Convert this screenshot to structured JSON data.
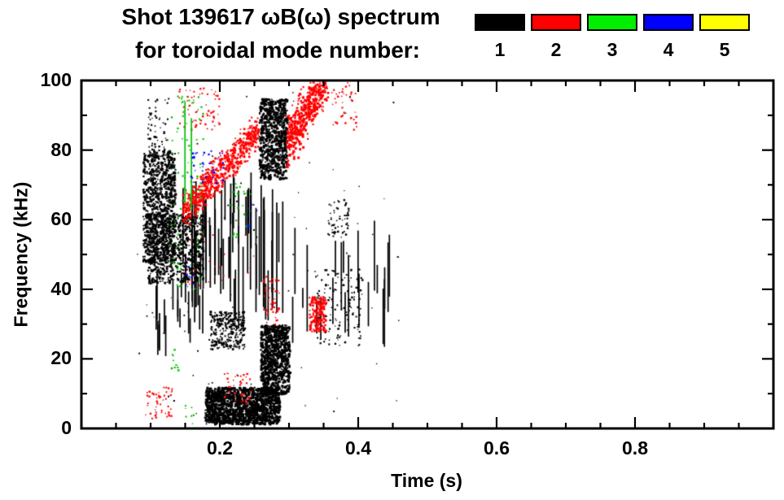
{
  "header": {
    "title_line1": "Shot 139617 ωB(ω) spectrum",
    "title_line2": "for toroidal mode number:"
  },
  "legend": {
    "entries": [
      {
        "label": "1",
        "color": "#000000"
      },
      {
        "label": "2",
        "color": "#ff0000"
      },
      {
        "label": "3",
        "color": "#00ee00"
      },
      {
        "label": "4",
        "color": "#0000ff"
      },
      {
        "label": "5",
        "color": "#ffff00"
      }
    ]
  },
  "chart_data": {
    "type": "scatter",
    "title": "Shot 139617 ωB(ω) spectrum",
    "subtitle": "for toroidal mode number: 1 2 3 4 5",
    "xlabel": "Time (s)",
    "ylabel": "Frequency (kHz)",
    "xlim": [
      0,
      1
    ],
    "ylim": [
      0,
      100
    ],
    "x_major_ticks": [
      0.2,
      0.4,
      0.6,
      0.8
    ],
    "x_tick_labels": [
      "0.2",
      "0.4",
      "0.6",
      "0.8"
    ],
    "x_minor_step": 0.05,
    "y_major_ticks": [
      0,
      20,
      40,
      60,
      80,
      100
    ],
    "y_tick_labels": [
      "0",
      "20",
      "40",
      "60",
      "80",
      "100"
    ],
    "y_minor_step": 10,
    "grid": false,
    "legend_position": "top-right",
    "series": [
      {
        "name": "mode 1",
        "color": "#000000",
        "clusters": [
          {
            "kind": "blob",
            "t": [
              0.088,
              0.135
            ],
            "f": [
              48,
              80
            ],
            "n": 900,
            "s": 2.2
          },
          {
            "kind": "blob",
            "t": [
              0.095,
              0.175
            ],
            "f": [
              42,
              62
            ],
            "n": 700,
            "s": 2.2
          },
          {
            "kind": "blob",
            "t": [
              0.095,
              0.125
            ],
            "f": [
              80,
              95
            ],
            "n": 60,
            "s": 1.8
          },
          {
            "kind": "vlines",
            "t": [
              0.105,
              0.175
            ],
            "f": [
              20,
              45
            ],
            "n": 18,
            "len": [
              4,
              14
            ]
          },
          {
            "kind": "vlines",
            "t": [
              0.145,
              0.265
            ],
            "f": [
              28,
              76
            ],
            "n": 45,
            "len": [
              8,
              30
            ]
          },
          {
            "kind": "blob",
            "t": [
              0.185,
              0.235
            ],
            "f": [
              23,
              34
            ],
            "n": 260,
            "s": 2.0
          },
          {
            "kind": "blob",
            "t": [
              0.178,
              0.285
            ],
            "f": [
              1.5,
              12
            ],
            "n": 1400,
            "s": 2.4
          },
          {
            "kind": "blob",
            "t": [
              0.258,
              0.3
            ],
            "f": [
              10,
              30
            ],
            "n": 800,
            "s": 2.4
          },
          {
            "kind": "blob",
            "t": [
              0.256,
              0.296
            ],
            "f": [
              72,
              95
            ],
            "n": 700,
            "s": 2.4
          },
          {
            "kind": "vlines",
            "t": [
              0.255,
              0.3
            ],
            "f": [
              30,
              70
            ],
            "n": 10,
            "len": [
              10,
              35
            ]
          },
          {
            "kind": "vlines",
            "t": [
              0.3,
              0.445
            ],
            "f": [
              22,
              62
            ],
            "n": 22,
            "len": [
              5,
              25
            ]
          },
          {
            "kind": "blob",
            "t": [
              0.335,
              0.405
            ],
            "f": [
              24,
              46
            ],
            "n": 140,
            "s": 1.8
          },
          {
            "kind": "blob",
            "t": [
              0.355,
              0.385
            ],
            "f": [
              55,
              66
            ],
            "n": 60,
            "s": 1.8
          },
          {
            "kind": "blob",
            "t": [
              0.08,
              0.46
            ],
            "f": [
              2,
              98
            ],
            "n": 90,
            "s": 1.5
          }
        ]
      },
      {
        "name": "mode 2",
        "color": "#ff0000",
        "clusters": [
          {
            "kind": "band",
            "t": [
              0.145,
              0.255
            ],
            "f": [
              62,
              86
            ],
            "w": 5,
            "n": 600,
            "s": 2.2
          },
          {
            "kind": "band",
            "t": [
              0.295,
              0.355
            ],
            "f": [
              82,
              102
            ],
            "w": 7,
            "n": 500,
            "s": 2.4
          },
          {
            "kind": "blob",
            "t": [
              0.328,
              0.352
            ],
            "f": [
              28,
              38
            ],
            "n": 160,
            "s": 2.2
          },
          {
            "kind": "blob",
            "t": [
              0.09,
              0.13
            ],
            "f": [
              3,
              12
            ],
            "n": 50,
            "s": 1.8
          },
          {
            "kind": "blob",
            "t": [
              0.205,
              0.245
            ],
            "f": [
              7,
              16
            ],
            "n": 40,
            "s": 1.8
          },
          {
            "kind": "blob",
            "t": [
              0.262,
              0.285
            ],
            "f": [
              30,
              44
            ],
            "n": 50,
            "s": 1.8
          },
          {
            "kind": "blob",
            "t": [
              0.14,
              0.2
            ],
            "f": [
              86,
              98
            ],
            "n": 60,
            "s": 1.8
          },
          {
            "kind": "blob",
            "t": [
              0.15,
              0.25
            ],
            "f": [
              40,
              60
            ],
            "n": 30,
            "s": 1.5
          },
          {
            "kind": "blob",
            "t": [
              0.36,
              0.4
            ],
            "f": [
              86,
              100
            ],
            "n": 40,
            "s": 1.8
          }
        ]
      },
      {
        "name": "mode 3",
        "color": "#00c000",
        "clusters": [
          {
            "kind": "blob",
            "t": [
              0.128,
              0.175
            ],
            "f": [
              40,
              96
            ],
            "n": 90,
            "s": 1.8
          },
          {
            "kind": "vlines",
            "t": [
              0.148,
              0.158
            ],
            "f": [
              60,
              95
            ],
            "n": 2,
            "len": [
              20,
              30
            ]
          },
          {
            "kind": "blob",
            "t": [
              0.215,
              0.245
            ],
            "f": [
              55,
              72
            ],
            "n": 25,
            "s": 1.8
          },
          {
            "kind": "blob",
            "t": [
              0.125,
              0.14
            ],
            "f": [
              16,
              24
            ],
            "n": 10,
            "s": 1.8
          },
          {
            "kind": "blob",
            "t": [
              0.148,
              0.162
            ],
            "f": [
              1,
              7
            ],
            "n": 8,
            "s": 1.8
          }
        ]
      },
      {
        "name": "mode 4",
        "color": "#0000ff",
        "clusters": [
          {
            "kind": "blob",
            "t": [
              0.155,
              0.205
            ],
            "f": [
              70,
              80
            ],
            "n": 35,
            "s": 1.8
          },
          {
            "kind": "blob",
            "t": [
              0.235,
              0.255
            ],
            "f": [
              58,
              66
            ],
            "n": 8,
            "s": 1.8
          },
          {
            "kind": "blob",
            "t": [
              0.15,
              0.17
            ],
            "f": [
              40,
              50
            ],
            "n": 6,
            "s": 1.8
          }
        ]
      },
      {
        "name": "mode 5",
        "color": "#ffff00",
        "clusters": []
      }
    ]
  }
}
